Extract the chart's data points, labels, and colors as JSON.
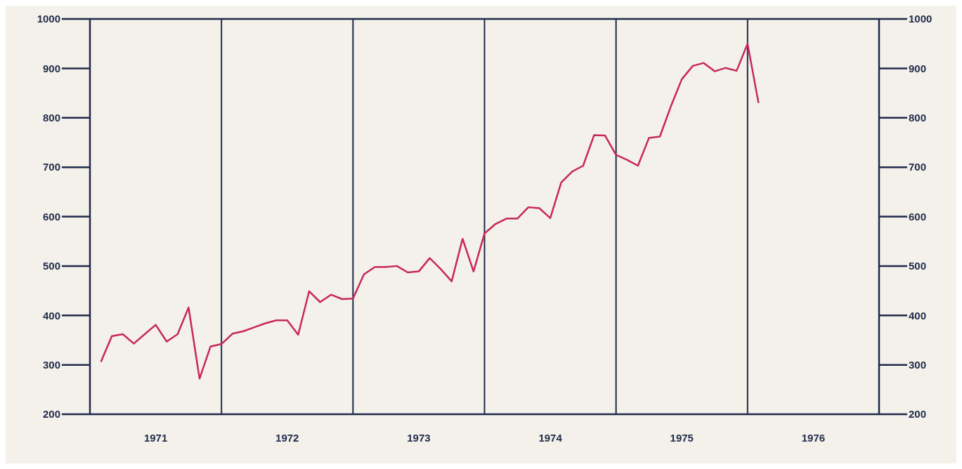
{
  "chart_data": {
    "type": "line",
    "x": [
      "1971-02",
      "1971-03",
      "1971-04",
      "1971-05",
      "1971-06",
      "1971-07",
      "1971-08",
      "1971-09",
      "1971-10",
      "1971-11",
      "1971-12",
      "1972-01",
      "1972-02",
      "1972-03",
      "1972-04",
      "1972-05",
      "1972-06",
      "1972-07",
      "1972-08",
      "1972-09",
      "1972-10",
      "1972-11",
      "1972-12",
      "1973-01",
      "1973-02",
      "1973-03",
      "1973-04",
      "1973-05",
      "1973-06",
      "1973-07",
      "1973-08",
      "1973-09",
      "1973-10",
      "1973-11",
      "1973-12",
      "1974-01",
      "1974-02",
      "1974-03",
      "1974-04",
      "1974-05",
      "1974-06",
      "1974-07",
      "1974-08",
      "1974-09",
      "1974-10",
      "1974-11",
      "1974-12",
      "1975-01",
      "1975-02",
      "1975-03",
      "1975-04",
      "1975-05",
      "1975-06",
      "1975-07",
      "1975-08",
      "1975-09",
      "1975-10",
      "1975-11",
      "1975-12",
      "1976-01",
      "1976-02"
    ],
    "series": [
      {
        "color": "#c8285a",
        "values": [
          306,
          358,
          362,
          343,
          362,
          381,
          347,
          362,
          416,
          272,
          337,
          342,
          363,
          368,
          376,
          384,
          390,
          390,
          361,
          449,
          427,
          442,
          433,
          434,
          483,
          498,
          498,
          500,
          487,
          489,
          516,
          494,
          469,
          555,
          489,
          566,
          585,
          596,
          596,
          619,
          617,
          597,
          669,
          691,
          703,
          765,
          764,
          725,
          715,
          703,
          759,
          762,
          823,
          878,
          905,
          911,
          894,
          901,
          895,
          950,
          830
        ]
      }
    ],
    "xlim": [
      "1971-01",
      "1977-01"
    ],
    "xticks": [
      {
        "value": "1971-07",
        "label": "1971"
      },
      {
        "value": "1972-07",
        "label": "1972"
      },
      {
        "value": "1973-07",
        "label": "1973"
      },
      {
        "value": "1974-07",
        "label": "1974"
      },
      {
        "value": "1975-07",
        "label": "1975"
      },
      {
        "value": "1976-07",
        "label": "1976"
      }
    ],
    "ylim": [
      200,
      1000
    ],
    "yticks": [
      200,
      300,
      400,
      500,
      600,
      700,
      800,
      900,
      1000
    ],
    "y2lim": [
      200,
      1000
    ],
    "y2ticks": [
      200,
      300,
      400,
      500,
      600,
      700,
      800,
      900,
      1000
    ],
    "ref_lines": [
      {
        "axis": "x",
        "value": "1972-01",
        "color": "#1f2a4a"
      },
      {
        "axis": "x",
        "value": "1973-01",
        "color": "#1f2a4a"
      },
      {
        "axis": "x",
        "value": "1974-01",
        "color": "#1f2a4a"
      },
      {
        "axis": "x",
        "value": "1975-01",
        "color": "#1f2a4a"
      },
      {
        "axis": "x",
        "value": "1976-01",
        "color": "#1f2a4a"
      }
    ],
    "grid": false,
    "legend": false,
    "marker": "none",
    "line_style": "solid"
  }
}
